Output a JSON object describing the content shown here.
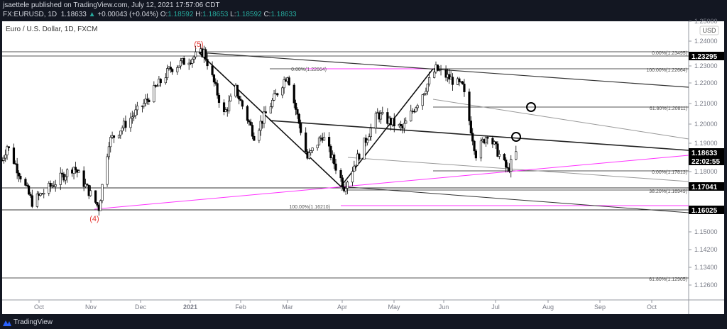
{
  "header": {
    "publisher": "jsaettele published on TradingView.com, July 12, 2021 17:57:06 CDT",
    "symbol": "FX:EURUSD, 1D",
    "last": "1.18633",
    "change": "+0.00043 (+0.04%)",
    "open_label": "O:",
    "open": "1.18592",
    "high_label": "H:",
    "high": "1.18653",
    "low_label": "L:",
    "low": "1.18592",
    "close_label": "C:",
    "close": "1.18633",
    "up_arrow_icon": "triangle-up-icon"
  },
  "legend": "Euro / U.S. Dollar, 1D, FXCM",
  "currency": "USD",
  "footer": {
    "brand": "TradingView",
    "logo_icon": "tradingview-logo-icon"
  },
  "colors": {
    "up": "#ffffff",
    "down": "#000000",
    "fib_magenta": "#ff33ff",
    "wave_label": "#e53935",
    "pill": "#000000"
  },
  "chart_data": {
    "type": "candlestick",
    "symbol": "EURUSD",
    "interval": "1D",
    "x_ticks": [
      "Oct",
      "Nov",
      "Dec",
      "2021",
      "Feb",
      "Mar",
      "Apr",
      "May",
      "Jun",
      "Jul",
      "Aug",
      "Sep",
      "Oct"
    ],
    "y_ticks": [
      "1.25000",
      "1.24000",
      "1.23000",
      "1.22000",
      "1.21000",
      "1.20000",
      "1.19000",
      "1.18000",
      "1.15000",
      "1.14200",
      "1.13400",
      "1.12600"
    ],
    "price_labels": [
      "1.23295",
      "1.18633",
      "1.17041",
      "1.16025"
    ],
    "countdown": "22:02:55",
    "pivots": [
      [
        "2020-09-07",
        1.183
      ],
      [
        "2020-09-10",
        1.19
      ],
      [
        "2020-09-25",
        1.163
      ],
      [
        "2020-10-20",
        1.18
      ],
      [
        "2020-11-04",
        1.1603
      ],
      [
        "2020-11-10",
        1.192
      ],
      [
        "2020-12-01",
        1.21
      ],
      [
        "2020-12-17",
        1.227
      ],
      [
        "2021-01-06",
        1.2349
      ],
      [
        "2021-01-18",
        1.205
      ],
      [
        "2021-01-25",
        1.217
      ],
      [
        "2021-02-05",
        1.195
      ],
      [
        "2021-02-25",
        1.2243
      ],
      [
        "2021-03-09",
        1.184
      ],
      [
        "2021-03-18",
        1.195
      ],
      [
        "2021-03-31",
        1.1704
      ],
      [
        "2021-04-20",
        1.205
      ],
      [
        "2021-05-05",
        1.198
      ],
      [
        "2021-05-25",
        1.2266
      ],
      [
        "2021-06-10",
        1.218
      ],
      [
        "2021-06-18",
        1.186
      ],
      [
        "2021-06-25",
        1.196
      ],
      [
        "2021-07-07",
        1.1781
      ],
      [
        "2021-07-12",
        1.1863
      ]
    ],
    "wave_labels": [
      "(5)",
      "(4)"
    ],
    "fib_labels": [
      {
        "text": "0.00%(1.23495)",
        "magenta": false
      },
      {
        "text": "100.00%(1.22664)",
        "magenta": false
      },
      {
        "text": "0.00%(1.22664)",
        "magenta": true
      },
      {
        "text": "61.80%(1.20811)",
        "magenta": false
      },
      {
        "text": "0.00%(1.17813)",
        "magenta": false
      },
      {
        "text": "38.20%(1.16949)",
        "magenta": false
      },
      {
        "text": "100.00%(1.16210)",
        "magenta": true
      },
      {
        "text": "61.80%(1.12905)",
        "magenta": false
      }
    ]
  }
}
